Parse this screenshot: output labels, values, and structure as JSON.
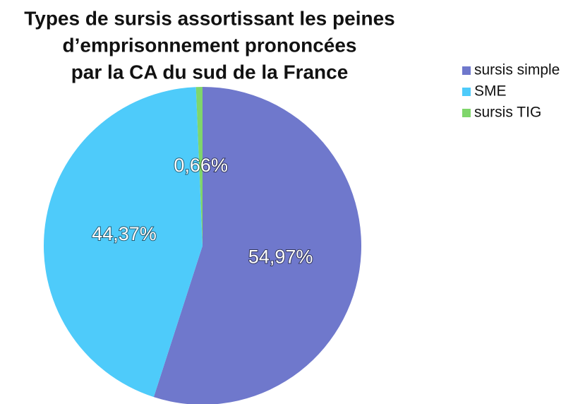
{
  "chart_data": {
    "type": "pie",
    "title": [
      "Types de sursis assortissant les peines",
      "d’emprisonnement prononcées",
      "par la CA du sud de la France"
    ],
    "categories": [
      "sursis simple",
      "SME",
      "sursis TIG"
    ],
    "values": [
      54.97,
      44.37,
      0.66
    ],
    "value_labels": [
      "54,97%",
      "44,37%",
      "0,66%"
    ],
    "colors": [
      "#6f78cc",
      "#4ecbfa",
      "#7fd66b"
    ],
    "legend": "right"
  }
}
